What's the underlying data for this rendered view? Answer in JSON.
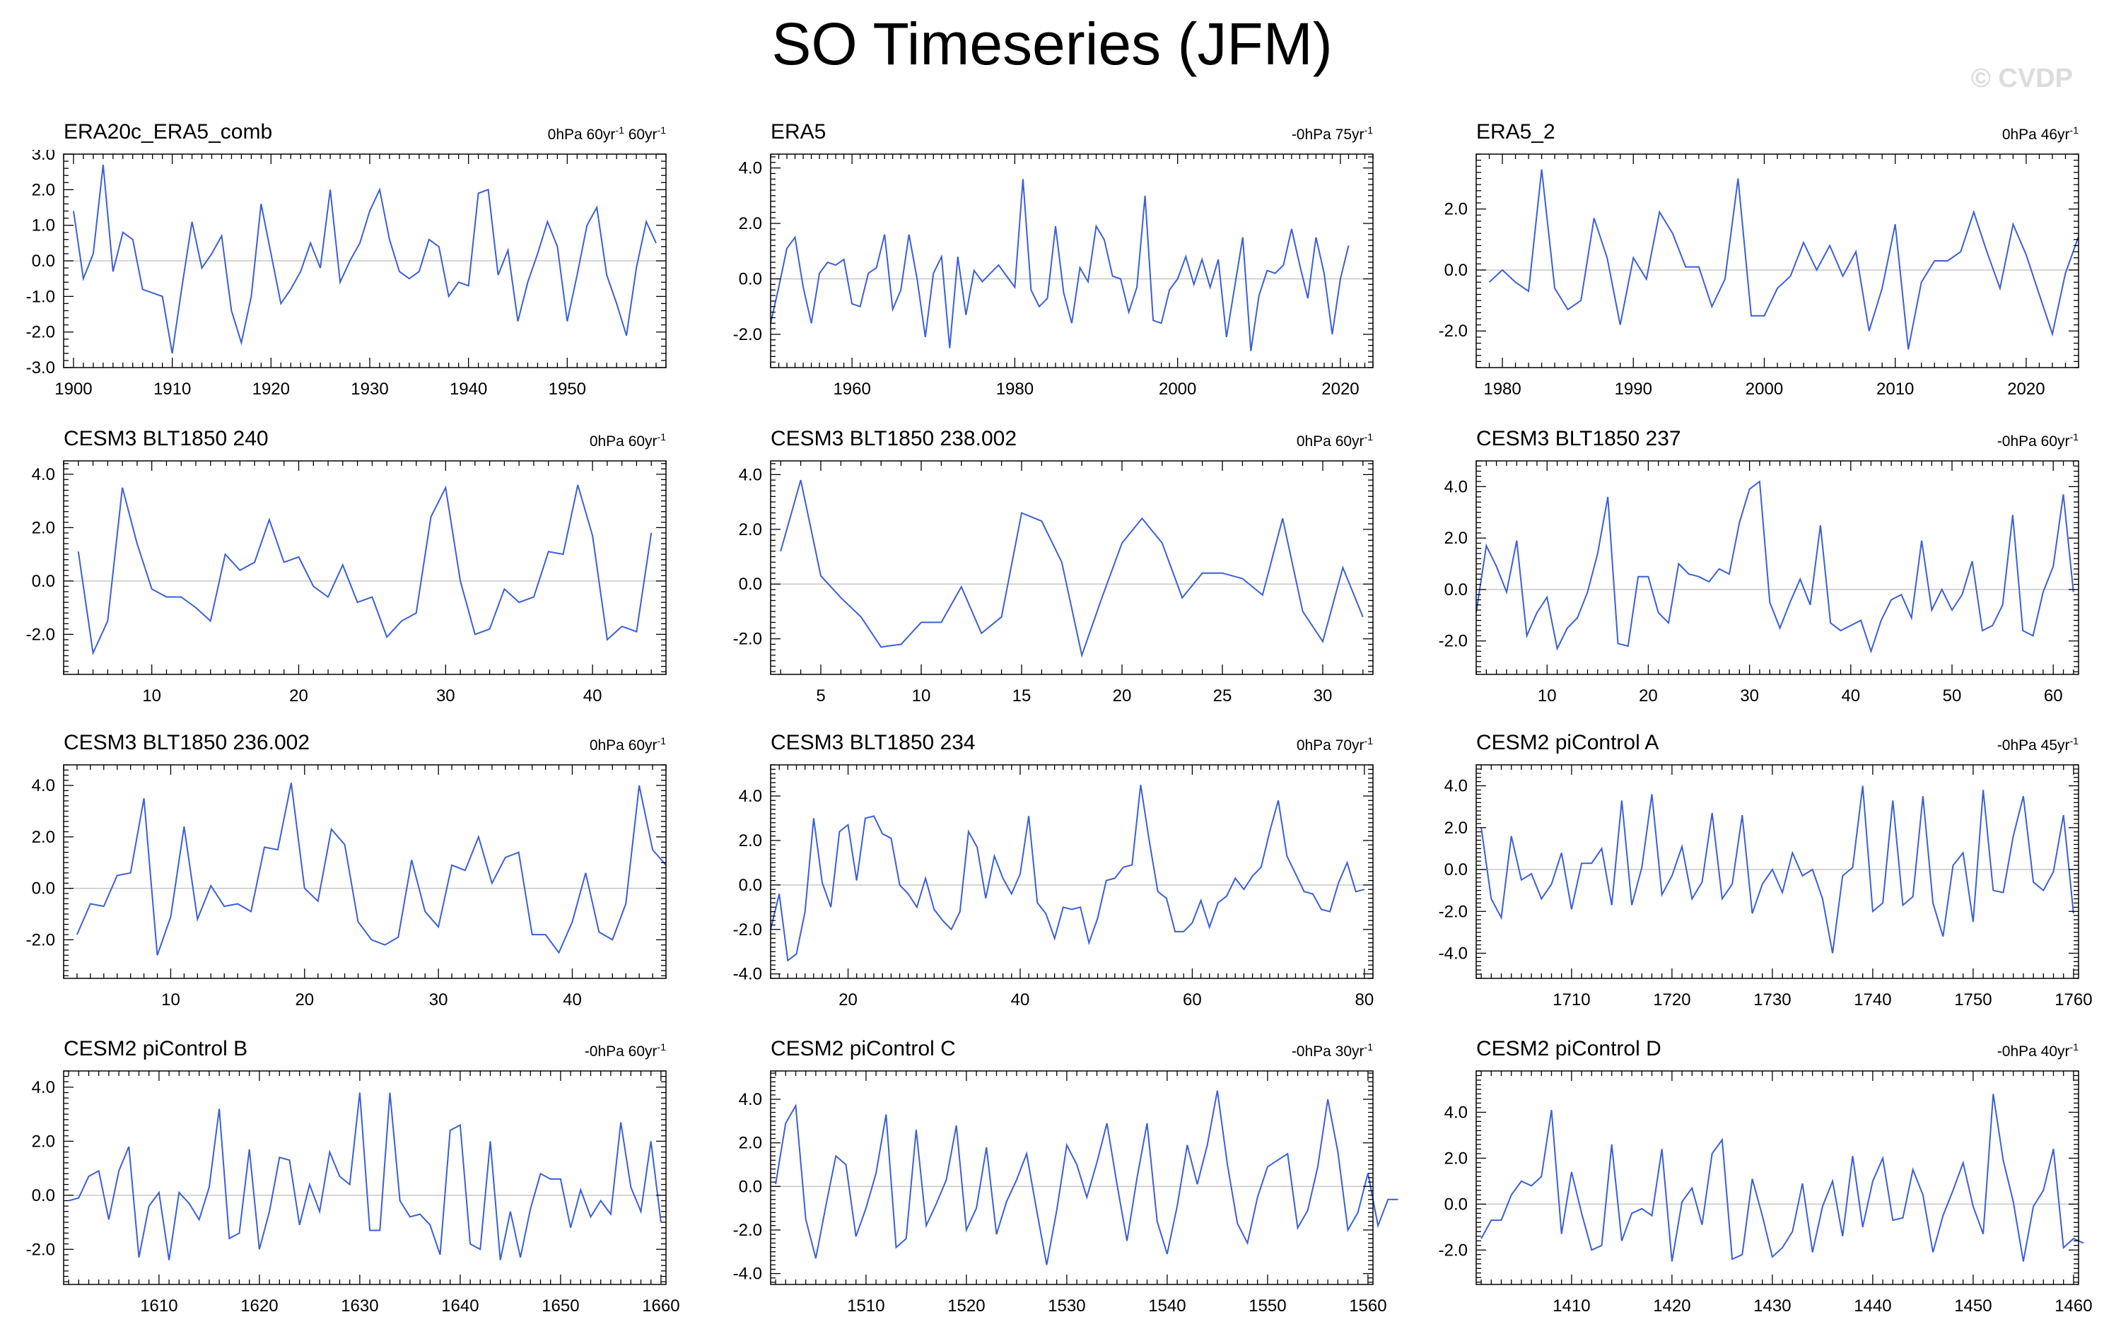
{
  "title": "SO Timeseries (JFM)",
  "watermark": "© CVDP",
  "colors": {
    "line": "#3b60d6",
    "zero": "#c8c8c8",
    "axis": "#000000"
  },
  "chart_data": [
    {
      "type": "line",
      "title": "ERA20c_ERA5_comb",
      "stat": "0hPa 60yr-1 60yr-1",
      "stat_parts": [
        "0hPa 60yr",
        "-1",
        " 60yr",
        "-1"
      ],
      "xlim": [
        1899,
        1960
      ],
      "ylim": [
        -3,
        3
      ],
      "xticks": [
        1900,
        1910,
        1920,
        1930,
        1940,
        1950
      ],
      "yticks": [
        -3,
        -2,
        -1,
        0,
        1,
        2,
        3
      ],
      "ytick_labels": [
        "-3.0",
        "-2.0",
        "-1.0",
        "0.0",
        "1.0",
        "2.0",
        "3.0"
      ],
      "x_start": 1900,
      "values": [
        1.4,
        -0.5,
        0.2,
        2.7,
        -0.3,
        0.8,
        0.6,
        -0.8,
        -0.9,
        -1.0,
        -2.6,
        -0.7,
        1.1,
        -0.2,
        0.2,
        0.7,
        -1.4,
        -2.3,
        -1.0,
        1.6,
        0.2,
        -1.2,
        -0.8,
        -0.3,
        0.5,
        -0.2,
        2.0,
        -0.6,
        0.0,
        0.5,
        1.4,
        2.0,
        0.6,
        -0.3,
        -0.5,
        -0.3,
        0.6,
        0.4,
        -1.0,
        -0.6,
        -0.7,
        1.9,
        2.0,
        -0.4,
        0.3,
        -1.7,
        -0.6,
        0.2,
        1.1,
        0.4,
        -1.7,
        -0.4,
        1.0,
        1.5,
        -0.4,
        -1.2,
        -2.1,
        -0.2,
        1.1,
        0.5
      ]
    },
    {
      "type": "line",
      "title": "ERA5",
      "stat": "-0hPa 75yr-1",
      "stat_parts": [
        "-0hPa 75yr",
        "-1"
      ],
      "xlim": [
        1950,
        2024
      ],
      "ylim": [
        -3.2,
        4.5
      ],
      "xticks": [
        1960,
        1980,
        2000,
        2020
      ],
      "yticks": [
        -2,
        0,
        2,
        4
      ],
      "ytick_labels": [
        "-2.0",
        "0.0",
        "2.0",
        "4.0"
      ],
      "x_start": 1950,
      "values": [
        -1.6,
        -0.3,
        1.1,
        1.5,
        -0.3,
        -1.6,
        0.2,
        0.6,
        0.5,
        0.7,
        -0.9,
        -1.0,
        0.2,
        0.4,
        1.6,
        -1.1,
        -0.4,
        1.6,
        0.0,
        -2.1,
        0.2,
        0.8,
        -2.5,
        0.8,
        -1.3,
        0.3,
        -0.1,
        0.2,
        0.5,
        0.1,
        -0.3,
        3.6,
        -0.4,
        -1.0,
        -0.7,
        1.9,
        -0.5,
        -1.6,
        0.4,
        -0.1,
        1.9,
        1.4,
        0.1,
        0.0,
        -1.2,
        -0.3,
        3.0,
        -1.5,
        -1.6,
        -0.4,
        0.0,
        0.8,
        -0.2,
        0.7,
        -0.3,
        0.7,
        -2.1,
        -0.3,
        1.5,
        -2.6,
        -0.6,
        0.3,
        0.2,
        0.5,
        1.8,
        0.5,
        -0.7,
        1.5,
        0.2,
        -2.0,
        0.0,
        1.2
      ]
    },
    {
      "type": "line",
      "title": "ERA5_2",
      "stat": "0hPa 46yr-1",
      "stat_parts": [
        "0hPa 46yr",
        "-1"
      ],
      "xlim": [
        1978,
        2024
      ],
      "ylim": [
        -3.2,
        3.8
      ],
      "xticks": [
        1980,
        1990,
        2000,
        2010,
        2020
      ],
      "yticks": [
        -2,
        0,
        2
      ],
      "ytick_labels": [
        "-2.0",
        "0.0",
        "2.0"
      ],
      "x_start": 1979,
      "values": [
        -0.4,
        0.0,
        -0.4,
        -0.7,
        3.3,
        -0.6,
        -1.3,
        -1.0,
        1.7,
        0.4,
        -1.8,
        0.4,
        -0.3,
        1.9,
        1.2,
        0.1,
        0.1,
        -1.2,
        -0.3,
        3.0,
        -1.5,
        -1.5,
        -0.6,
        -0.2,
        0.9,
        0.0,
        0.8,
        -0.2,
        0.6,
        -2.0,
        -0.6,
        1.5,
        -2.6,
        -0.4,
        0.3,
        0.3,
        0.6,
        1.9,
        0.6,
        -0.6,
        1.5,
        0.5,
        -0.8,
        -2.1,
        -0.1,
        1.1
      ]
    },
    {
      "type": "line",
      "title": "CESM3 BLT1850 240",
      "stat": "0hPa 60yr-1",
      "stat_parts": [
        "0hPa 60yr",
        "-1"
      ],
      "xlim": [
        4,
        45
      ],
      "ylim": [
        -3.5,
        4.5
      ],
      "xticks": [
        10,
        20,
        30,
        40
      ],
      "yticks": [
        -2,
        0,
        2,
        4
      ],
      "ytick_labels": [
        "-2.0",
        "0.0",
        "2.0",
        "4.0"
      ],
      "x_start": 5,
      "values": [
        1.1,
        -2.7,
        -1.5,
        3.5,
        1.4,
        -0.3,
        -0.6,
        -0.6,
        -1.0,
        -1.5,
        1.0,
        0.4,
        0.7,
        2.3,
        0.7,
        0.9,
        -0.2,
        -0.6,
        0.6,
        -0.8,
        -0.6,
        -2.1,
        -1.5,
        -1.2,
        2.4,
        3.5,
        0.0,
        -2.0,
        -1.8,
        -0.3,
        -0.8,
        -0.6,
        1.1,
        1.0,
        3.6,
        1.7,
        -2.2,
        -1.7,
        -1.9,
        1.8
      ]
    },
    {
      "type": "line",
      "title": "CESM3 BLT1850 238.002",
      "stat": "0hPa 60yr-1",
      "stat_parts": [
        "0hPa 60yr",
        "-1"
      ],
      "xlim": [
        2.5,
        32.5
      ],
      "ylim": [
        -3.3,
        4.5
      ],
      "xticks": [
        5,
        10,
        15,
        20,
        25,
        30
      ],
      "yticks": [
        -2,
        0,
        2,
        4
      ],
      "ytick_labels": [
        "-2.0",
        "0.0",
        "2.0",
        "4.0"
      ],
      "x_start": 3,
      "values": [
        1.2,
        3.8,
        0.3,
        -0.5,
        -1.2,
        -2.3,
        -2.2,
        -1.4,
        -1.4,
        -0.1,
        -1.8,
        -1.2,
        2.6,
        2.3,
        0.8,
        -2.6,
        -0.5,
        1.5,
        2.4,
        1.5,
        -0.5,
        0.4,
        0.4,
        0.2,
        -0.4,
        2.4,
        -1.0,
        -2.1,
        0.6,
        -1.2
      ]
    },
    {
      "type": "line",
      "title": "CESM3 BLT1850 237",
      "stat": "-0hPa 60yr-1",
      "stat_parts": [
        "-0hPa 60yr",
        "-1"
      ],
      "xlim": [
        3,
        62.5
      ],
      "ylim": [
        -3.3,
        5.0
      ],
      "xticks": [
        10,
        20,
        30,
        40,
        50,
        60
      ],
      "yticks": [
        -2,
        0,
        2,
        4
      ],
      "ytick_labels": [
        "-2.0",
        "0.0",
        "2.0",
        "4.0"
      ],
      "x_start": 3,
      "values": [
        -0.9,
        1.7,
        0.9,
        -0.1,
        1.9,
        -1.8,
        -0.9,
        -0.3,
        -2.3,
        -1.5,
        -1.1,
        -0.1,
        1.4,
        3.6,
        -2.1,
        -2.2,
        0.5,
        0.5,
        -0.9,
        -1.3,
        1.0,
        0.6,
        0.5,
        0.3,
        0.8,
        0.6,
        2.6,
        3.9,
        4.2,
        -0.5,
        -1.5,
        -0.5,
        0.4,
        -0.6,
        2.5,
        -1.3,
        -1.6,
        -1.4,
        -1.2,
        -2.4,
        -1.2,
        -0.4,
        -0.2,
        -1.1,
        1.9,
        -0.8,
        0.0,
        -0.8,
        -0.2,
        1.1,
        -1.6,
        -1.4,
        -0.6,
        2.9,
        -1.6,
        -1.8,
        -0.1,
        0.9,
        3.7,
        -0.1
      ]
    },
    {
      "type": "line",
      "title": "CESM3 BLT1850 236.002",
      "stat": "0hPa 60yr-1",
      "stat_parts": [
        "0hPa 60yr",
        "-1"
      ],
      "xlim": [
        2,
        47
      ],
      "ylim": [
        -3.5,
        4.8
      ],
      "xticks": [
        10,
        20,
        30,
        40
      ],
      "yticks": [
        -2,
        0,
        2,
        4
      ],
      "ytick_labels": [
        "-2.0",
        "0.0",
        "2.0",
        "4.0"
      ],
      "x_start": 3,
      "values": [
        -1.8,
        -0.6,
        -0.7,
        0.5,
        0.6,
        3.5,
        -2.6,
        -1.1,
        2.4,
        -1.2,
        0.1,
        -0.7,
        -0.6,
        -0.9,
        1.6,
        1.5,
        4.1,
        0.0,
        -0.5,
        2.3,
        1.7,
        -1.3,
        -2.0,
        -2.2,
        -1.9,
        1.1,
        -0.9,
        -1.5,
        0.9,
        0.7,
        2.0,
        0.2,
        1.2,
        1.4,
        -1.8,
        -1.8,
        -2.5,
        -1.3,
        0.6,
        -1.7,
        -2.0,
        -0.6,
        4.0,
        1.5,
        0.9
      ]
    },
    {
      "type": "line",
      "title": "CESM3 BLT1850 234",
      "stat": "0hPa 70yr-1",
      "stat_parts": [
        "0hPa 70yr",
        "-1"
      ],
      "xlim": [
        11,
        81
      ],
      "ylim": [
        -4.2,
        5.4
      ],
      "xticks": [
        20,
        40,
        60,
        80
      ],
      "yticks": [
        -4,
        -2,
        0,
        2,
        4
      ],
      "ytick_labels": [
        "-4.0",
        "-2.0",
        "0.0",
        "2.0",
        "4.0"
      ],
      "x_start": 11,
      "values": [
        -2.0,
        -0.4,
        -3.4,
        -3.1,
        -1.2,
        3.0,
        0.1,
        -1.0,
        2.4,
        2.7,
        0.2,
        3.0,
        3.1,
        2.3,
        2.1,
        0.0,
        -0.4,
        -1.0,
        0.3,
        -1.1,
        -1.6,
        -2.0,
        -1.2,
        2.4,
        1.7,
        -0.6,
        1.3,
        0.3,
        -0.4,
        0.5,
        3.1,
        -0.8,
        -1.3,
        -2.4,
        -1.0,
        -1.1,
        -1.0,
        -2.6,
        -1.5,
        0.2,
        0.3,
        0.8,
        0.9,
        4.5,
        2.0,
        -0.3,
        -0.6,
        -2.1,
        -2.1,
        -1.7,
        -0.7,
        -1.9,
        -0.8,
        -0.5,
        0.3,
        -0.2,
        0.4,
        0.8,
        2.4,
        3.8,
        1.3,
        0.5,
        -0.3,
        -0.4,
        -1.1,
        -1.2,
        0.1,
        1.0,
        -0.3,
        -0.2
      ]
    },
    {
      "type": "line",
      "title": "CESM2 piControl A",
      "stat": "-0hPa 45yr-1",
      "stat_parts": [
        "-0hPa 45yr",
        "-1"
      ],
      "xlim": [
        1700.5,
        1760.5
      ],
      "ylim": [
        -5.2,
        5.0
      ],
      "xticks": [
        1710,
        1720,
        1730,
        1740,
        1750,
        1760
      ],
      "yticks": [
        -4,
        -2,
        0,
        2,
        4
      ],
      "ytick_labels": [
        "-4.0",
        "-2.0",
        "0.0",
        "2.0",
        "4.0"
      ],
      "x_start": 1701,
      "values": [
        2.0,
        -1.4,
        -2.3,
        1.6,
        -0.5,
        -0.2,
        -1.4,
        -0.7,
        0.8,
        -1.9,
        0.3,
        0.3,
        1.0,
        -1.7,
        3.3,
        -1.7,
        0.1,
        3.6,
        -1.2,
        -0.3,
        1.1,
        -1.4,
        -0.6,
        2.7,
        -1.4,
        -0.7,
        2.6,
        -2.1,
        -0.7,
        0.0,
        -1.1,
        0.8,
        -0.3,
        0.0,
        -1.4,
        -4.0,
        -0.3,
        0.1,
        4.0,
        -2.0,
        -1.6,
        3.3,
        -1.7,
        -1.3,
        3.5,
        -1.6,
        -3.2,
        0.2,
        0.8,
        -2.5,
        3.8,
        -1.0,
        -1.1,
        1.6,
        3.5,
        -0.6,
        -1.0,
        -0.1,
        2.6,
        -2.1
      ]
    },
    {
      "type": "line",
      "title": "CESM2 piControl B",
      "stat": "-0hPa 60yr-1",
      "stat_parts": [
        "-0hPa 60yr",
        "-1"
      ],
      "xlim": [
        1600.5,
        1660.5
      ],
      "ylim": [
        -3.3,
        4.6
      ],
      "xticks": [
        1610,
        1620,
        1630,
        1640,
        1650,
        1660
      ],
      "yticks": [
        -2,
        0,
        2,
        4
      ],
      "ytick_labels": [
        "-2.0",
        "0.0",
        "2.0",
        "4.0"
      ],
      "x_start": 1601,
      "values": [
        -0.2,
        -0.1,
        0.7,
        0.9,
        -0.9,
        0.9,
        1.8,
        -2.3,
        -0.4,
        0.1,
        -2.4,
        0.1,
        -0.3,
        -0.9,
        0.3,
        3.2,
        -1.6,
        -1.4,
        1.7,
        -2.0,
        -0.6,
        1.4,
        1.3,
        -1.1,
        0.4,
        -0.6,
        1.6,
        0.7,
        0.4,
        3.8,
        -1.3,
        -1.3,
        3.8,
        -0.2,
        -0.8,
        -0.7,
        -1.1,
        -2.2,
        2.4,
        2.6,
        -1.8,
        -2.0,
        2.0,
        -2.4,
        -0.6,
        -2.3,
        -0.5,
        0.8,
        0.6,
        0.6,
        -1.2,
        0.2,
        -0.8,
        -0.2,
        -0.7,
        2.7,
        0.3,
        -0.6,
        2.0,
        -1.0
      ]
    },
    {
      "type": "line",
      "title": "CESM2 piControl C",
      "stat": "-0hPa 30yr-1",
      "stat_parts": [
        "-0hPa 30yr",
        "-1"
      ],
      "xlim": [
        1500.5,
        1560.5
      ],
      "ylim": [
        -4.5,
        5.3
      ],
      "xticks": [
        1510,
        1520,
        1530,
        1540,
        1550,
        1560
      ],
      "yticks": [
        -4,
        -2,
        0,
        2,
        4
      ],
      "ytick_labels": [
        "-4.0",
        "-2.0",
        "0.0",
        "2.0",
        "4.0"
      ],
      "x_start": 1501,
      "values": [
        0.1,
        2.9,
        3.7,
        -1.5,
        -3.3,
        -0.9,
        1.4,
        1.0,
        -2.3,
        -1.0,
        0.6,
        3.3,
        -2.8,
        -2.4,
        2.6,
        -1.8,
        -0.8,
        0.3,
        2.8,
        -2.0,
        -1.0,
        1.8,
        -2.2,
        -0.7,
        0.3,
        1.5,
        -1.1,
        -3.6,
        -1.1,
        1.9,
        1.0,
        -0.5,
        1.1,
        2.9,
        0.1,
        -2.5,
        0.4,
        2.9,
        -1.6,
        -3.1,
        -0.9,
        1.9,
        0.1,
        1.9,
        4.4,
        1.0,
        -1.7,
        -2.6,
        -0.5,
        0.9,
        1.2,
        1.5,
        -1.9,
        -1.1,
        0.9,
        4.0,
        1.6,
        -2.0,
        -1.2,
        0.6,
        -1.8,
        -0.6,
        -0.6
      ]
    },
    {
      "type": "line",
      "title": "CESM2 piControl D",
      "stat": "-0hPa 40yr-1",
      "stat_parts": [
        "-0hPa 40yr",
        "-1"
      ],
      "xlim": [
        1400.5,
        1460.5
      ],
      "ylim": [
        -3.5,
        5.8
      ],
      "xticks": [
        1410,
        1420,
        1430,
        1440,
        1450,
        1460
      ],
      "yticks": [
        -2,
        0,
        2,
        4
      ],
      "ytick_labels": [
        "-2.0",
        "0.0",
        "2.0",
        "4.0"
      ],
      "x_start": 1401,
      "values": [
        -1.5,
        -0.7,
        -0.7,
        0.4,
        1.0,
        0.8,
        1.2,
        4.1,
        -1.3,
        1.4,
        -0.4,
        -2.0,
        -1.8,
        2.6,
        -1.6,
        -0.4,
        -0.2,
        -0.5,
        2.4,
        -2.5,
        0.1,
        0.7,
        -0.9,
        2.2,
        2.8,
        -2.4,
        -2.2,
        1.1,
        -0.5,
        -2.3,
        -1.9,
        -1.2,
        0.9,
        -2.1,
        -0.1,
        1.0,
        -1.4,
        2.1,
        -1.0,
        1.0,
        2.0,
        -0.7,
        -0.6,
        1.5,
        0.4,
        -2.1,
        -0.5,
        0.6,
        1.8,
        -0.1,
        -1.3,
        4.8,
        1.9,
        0.1,
        -2.5,
        -0.1,
        0.6,
        2.4,
        -1.9,
        -1.5,
        -1.7
      ]
    }
  ]
}
